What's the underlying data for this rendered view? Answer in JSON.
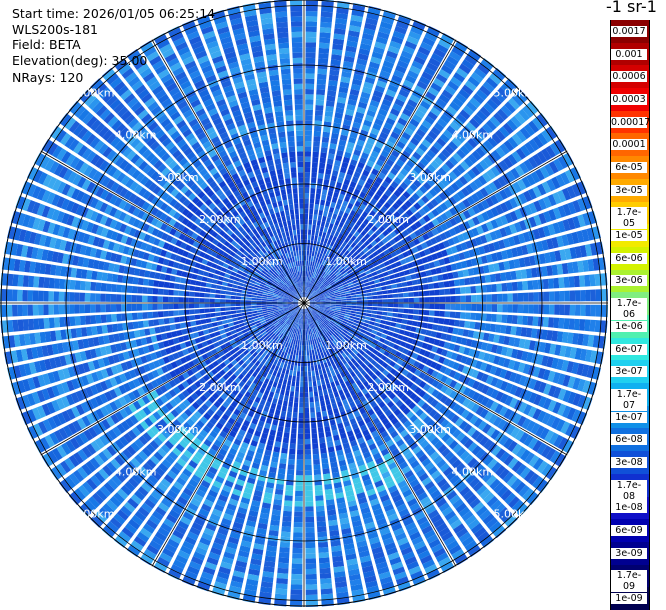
{
  "info": {
    "start_time": "Start time: 2026/01/05 06:25:14",
    "instrument": "WLS200s-181",
    "field": "Field: BETA",
    "elevation": "Elevation(deg): 35.00",
    "nrays": "NRays: 120"
  },
  "colorbar": {
    "title": "-1 sr-1",
    "ticks": [
      "0.0017",
      "0.001",
      "0.0006",
      "0.0003",
      "0.00017",
      "0.0001",
      "6e-05",
      "3e-05",
      "1.7e-05",
      "1e-05",
      "6e-06",
      "3e-06",
      "1.7e-06",
      "1e-06",
      "6e-07",
      "3e-07",
      "1.7e-07",
      "1e-07",
      "6e-08",
      "3e-08",
      "1.7e-08",
      "1e-08",
      "6e-09",
      "3e-09",
      "1.7e-09",
      "1e-09"
    ],
    "colors": [
      "#8b0000",
      "#b00000",
      "#d40000",
      "#f00000",
      "#ff3300",
      "#ff6600",
      "#ff8800",
      "#ffaa00",
      "#ffcc00",
      "#f2ea00",
      "#d4f200",
      "#aaf230",
      "#80ee80",
      "#50f0b0",
      "#30e8e0",
      "#20d0f0",
      "#10b0f0",
      "#1090e8",
      "#1070e0",
      "#1050d8",
      "#1030d0",
      "#1010c8",
      "#0000b0",
      "#000090",
      "#000070",
      "#000050"
    ]
  },
  "ring_labels": {
    "r1": "1.00km",
    "r2": "2.00km",
    "r3": "3.00km",
    "r4": "4.00km",
    "r5": "5.00km"
  }
}
